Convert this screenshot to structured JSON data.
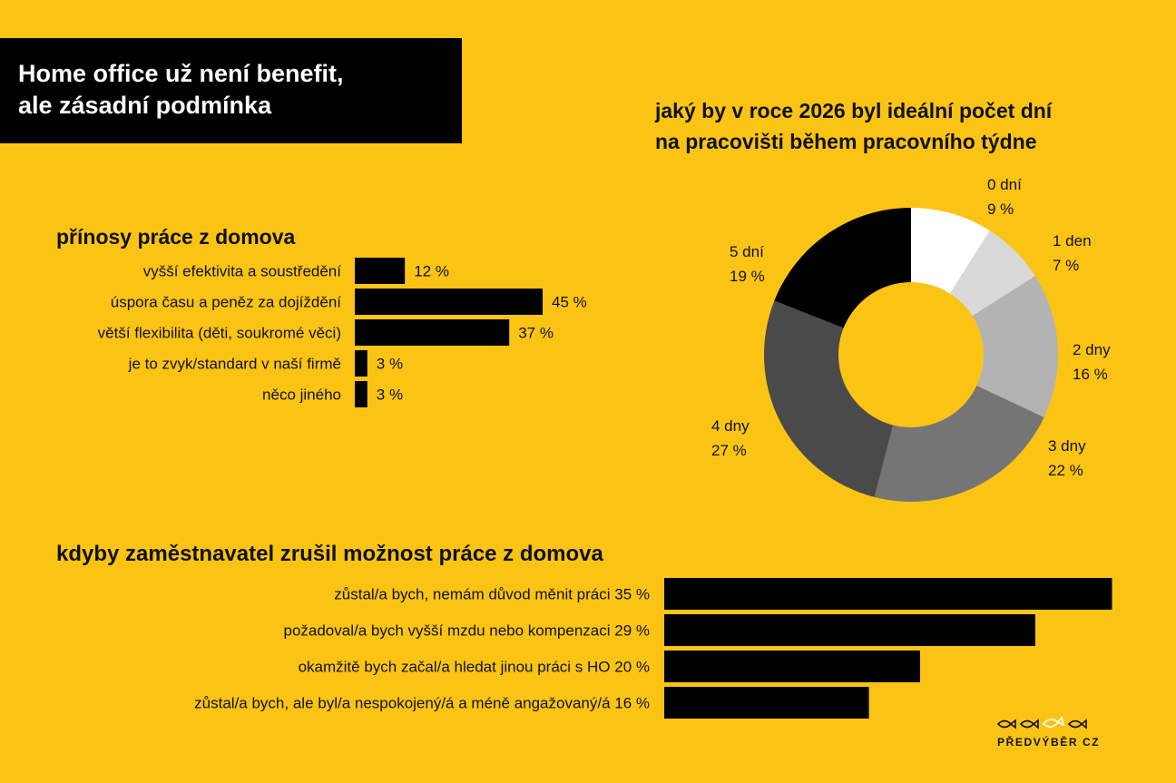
{
  "header": {
    "title_line1": "Home office už není benefit,",
    "title_line2": "ale zásadní podmínka"
  },
  "benefits": {
    "title": "přínosy práce z domova"
  },
  "donut": {
    "title_line1": "jaký by v roce 2026 byl ideální počet dní",
    "title_line2": "na pracovišti během pracovního týdne"
  },
  "quit": {
    "title": "kdyby zaměstnavatel zrušil možnost práce z domova"
  },
  "brand": {
    "name": "PŘEDVÝBĚR CZ",
    "logo_icon": "fish-row-icon"
  },
  "chart_data": [
    {
      "type": "bar",
      "orientation": "horizontal",
      "title": "přínosy práce z domova",
      "categories": [
        "vyšší efektivita a soustředění",
        "úspora času a peněz za dojíždění",
        "větší flexibilita (děti, soukromé věci)",
        "je to zvyk/standard v naší firmě",
        "něco jiného"
      ],
      "values": [
        12,
        45,
        37,
        3,
        3
      ],
      "value_labels": [
        "12 %",
        "45 %",
        "37 %",
        "3 %",
        "3 %"
      ],
      "unit": "%",
      "bar_color": "#000000",
      "grid": false
    },
    {
      "type": "pie",
      "style": "donut",
      "title": "jaký by v roce 2026 byl ideální počet dní na pracovišti během pracovního týdne",
      "categories": [
        "0 dní",
        "1 den",
        "2 dny",
        "3 dny",
        "4 dny",
        "5 dní"
      ],
      "values": [
        9,
        7,
        16,
        22,
        27,
        19
      ],
      "value_labels": [
        "9 %",
        "7 %",
        "16 %",
        "22 %",
        "27 %",
        "19 %"
      ],
      "colors": [
        "#FFFFFF",
        "#D9D9D9",
        "#B3B3B3",
        "#757575",
        "#4A4A4A",
        "#000000"
      ],
      "unit": "%"
    },
    {
      "type": "bar",
      "orientation": "horizontal",
      "title": "kdyby zaměstnavatel zrušil možnost práce z domova",
      "categories": [
        "zůstal/a bych, nemám důvod měnit práci 35 %",
        "požadoval/a bych vyšší mzdu nebo kompenzaci 29 %",
        "okamžitě bych začal/a hledat jinou práci s HO 20 %",
        "zůstal/a bych, ale byl/a nespokojený/á a méně angažovaný/á 16 %"
      ],
      "values": [
        35,
        29,
        20,
        16
      ],
      "unit": "%",
      "bar_color": "#000000",
      "grid": false
    }
  ]
}
